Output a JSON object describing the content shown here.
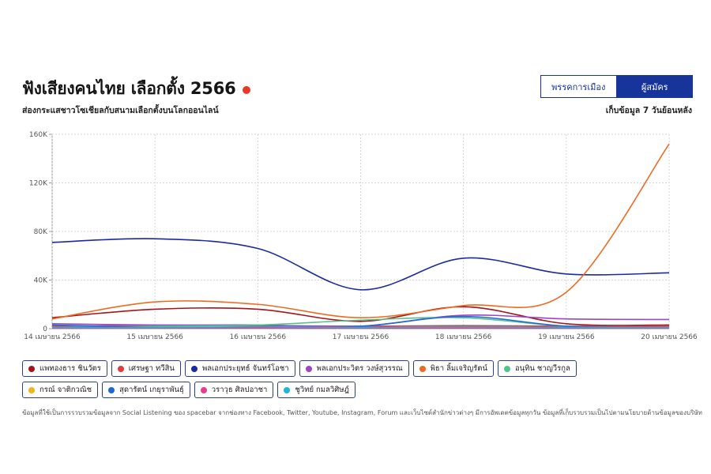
{
  "header": {
    "title": "ฟังเสียงคนไทย เลือกตั้ง 2566",
    "subtitle": "ส่องกระแสชาวโซเชียลกับสนามเลือกตั้งบนโลกออนไลน์",
    "note_right": "เก็บข้อมูล 7 วันย้อนหลัง",
    "live_color": "#e8382a"
  },
  "toggle": {
    "options": [
      "พรรคการเมือง",
      "ผู้สมัคร"
    ],
    "selected": "ผู้สมัคร"
  },
  "footnote": "ข้อมูลที่ใช้เป็นการรวบรวมข้อมูลจาก Social Listening ของ spacebar จากช่องทาง Facebook, Twitter, Youtube, Instagram, Forum และเว็บไซต์สำนักข่าวต่างๆ มีการอัพเดตข้อมูลทุกวัน ข้อมูลที่เก็บรวบรวมเป็นไปตามนโยบายด้านข้อมูลของบริษัท",
  "chart_data": {
    "type": "line",
    "x": [
      "14 เมษายน 2566",
      "15 เมษายน 2566",
      "16 เมษายน 2566",
      "17 เมษายน 2566",
      "18 เมษายน 2566",
      "19 เมษายน 2566",
      "20 เมษายน 2566"
    ],
    "ylim": [
      0,
      160000
    ],
    "yticks": [
      0,
      40000,
      80000,
      120000,
      160000
    ],
    "ytick_labels": [
      "0",
      "40K",
      "80K",
      "120K",
      "160K"
    ],
    "grid": true,
    "legend_position": "bottom",
    "series": [
      {
        "name": "แพทองธาร ชินวัตร",
        "color": "#a3151a",
        "values": [
          9000,
          16000,
          16000,
          6000,
          18000,
          4000,
          3000
        ]
      },
      {
        "name": "เศรษฐา ทวีสิน",
        "color": "#e23b3b",
        "values": [
          2000,
          2500,
          2500,
          2000,
          2500,
          2000,
          2000
        ]
      },
      {
        "name": "พลเอกประยุทธ์ จันทร์โอชา",
        "color": "#1a2aa0",
        "values": [
          71000,
          74000,
          66000,
          32000,
          58000,
          45000,
          46000
        ]
      },
      {
        "name": "พลเอกประวิตร วงษ์สุวรรณ",
        "color": "#9b45c9",
        "values": [
          4000,
          3000,
          3000,
          2000,
          11000,
          8000,
          7500
        ]
      },
      {
        "name": "พิธา ลิ้มเจริญรัตน์",
        "color": "#ee6a1f",
        "values": [
          8000,
          22000,
          20000,
          9000,
          19000,
          30000,
          152000
        ]
      },
      {
        "name": "อนุทิน ชาญวีรกูล",
        "color": "#52c48a",
        "values": [
          1000,
          2000,
          3000,
          7000,
          9000,
          2000,
          1000
        ]
      },
      {
        "name": "กรณ์ จาติกวณิช",
        "color": "#f0b41c",
        "values": [
          500,
          800,
          900,
          800,
          900,
          600,
          500
        ]
      },
      {
        "name": "สุดารัตน์ เกยุราพันธุ์",
        "color": "#1f66d6",
        "values": [
          3000,
          1000,
          1000,
          2000,
          10000,
          2000,
          1000
        ]
      },
      {
        "name": "วราวุธ ศิลปอาชา",
        "color": "#e53d8c",
        "values": [
          300,
          400,
          400,
          300,
          400,
          300,
          300
        ]
      },
      {
        "name": "ชูวิทย์ กมลวิศิษฎ์",
        "color": "#1bb6d8",
        "values": [
          1000,
          1000,
          1500,
          1000,
          1500,
          1000,
          1000
        ]
      }
    ]
  }
}
